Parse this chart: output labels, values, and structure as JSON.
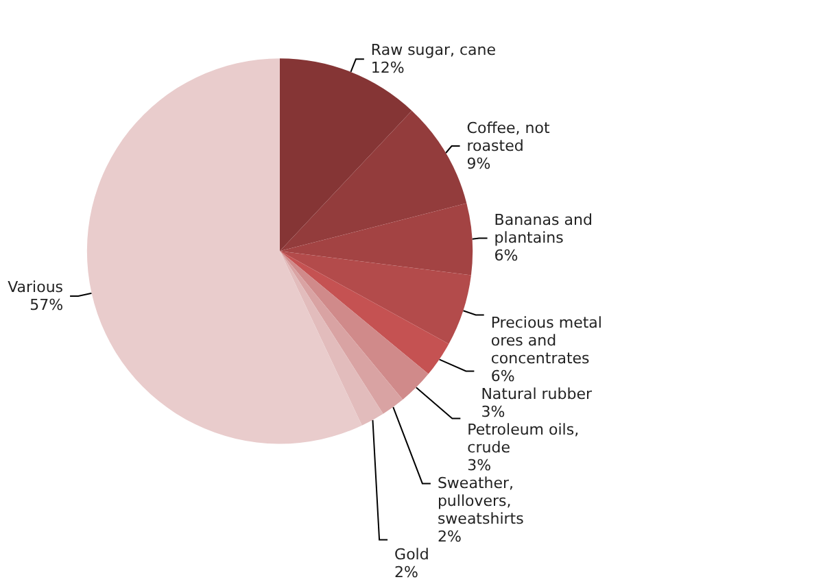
{
  "chart_data": {
    "type": "pie",
    "categories": [
      "Raw sugar, cane",
      "Coffee, not roasted",
      "Bananas and plantains",
      "Precious metal ores and concentrates",
      "Natural rubber",
      "Petroleum oils, crude",
      "Sweather, pullovers, sweatshirts",
      "Gold",
      "Various"
    ],
    "values": [
      12,
      9,
      6,
      6,
      3,
      3,
      2,
      2,
      57
    ],
    "colors": [
      "#853535",
      "#933c3c",
      "#a34343",
      "#b34b4b",
      "#c55252",
      "#d08a8a",
      "#d9a3a3",
      "#e2bcbc",
      "#e9cccc"
    ],
    "value_labels": [
      "12%",
      "9%",
      "6%",
      "6%",
      "3%",
      "3%",
      "2%",
      "2%",
      "57%"
    ],
    "legend": false
  }
}
